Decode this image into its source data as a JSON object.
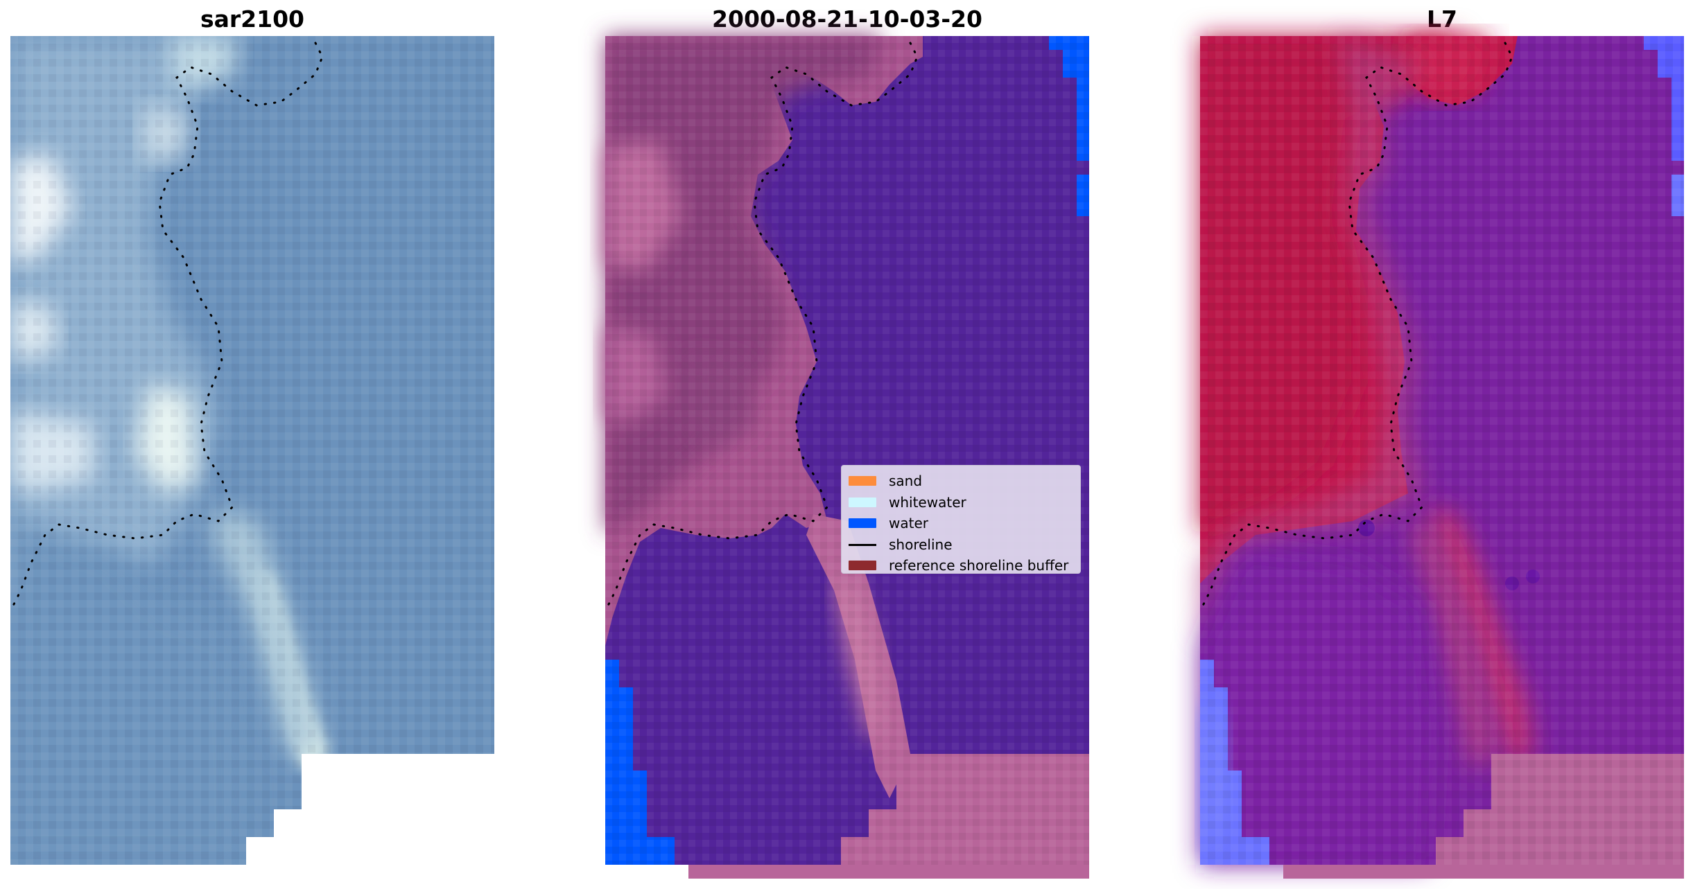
{
  "panels": [
    {
      "title": "sar2100",
      "kind": "true-color"
    },
    {
      "title": "2000-08-21-10-03-20",
      "kind": "classification"
    },
    {
      "title": "L7",
      "kind": "index"
    }
  ],
  "legend": {
    "placement": "center-right of middle panel",
    "items": [
      {
        "label": "sand",
        "type": "patch",
        "color": "#fd8c3c"
      },
      {
        "label": "whitewater",
        "type": "patch",
        "color": "#cdf7ff"
      },
      {
        "label": "water",
        "type": "patch",
        "color": "#0057ff"
      },
      {
        "label": "shoreline",
        "type": "line",
        "color": "#000000"
      },
      {
        "label": "reference shoreline buffer",
        "type": "patch",
        "color": "#8e2a2e"
      }
    ]
  },
  "colors": {
    "sar_water": "#6890ba",
    "sar_foam": "#e6f2f7",
    "class_water": "#53249a",
    "class_land": "#b8659a",
    "class_land_dark": "#8a3f7c",
    "class_blue": "#0057ff",
    "l7_red": "#c2194e",
    "l7_purple": "#7a22a0",
    "l7_blue": "#6b73ff"
  }
}
